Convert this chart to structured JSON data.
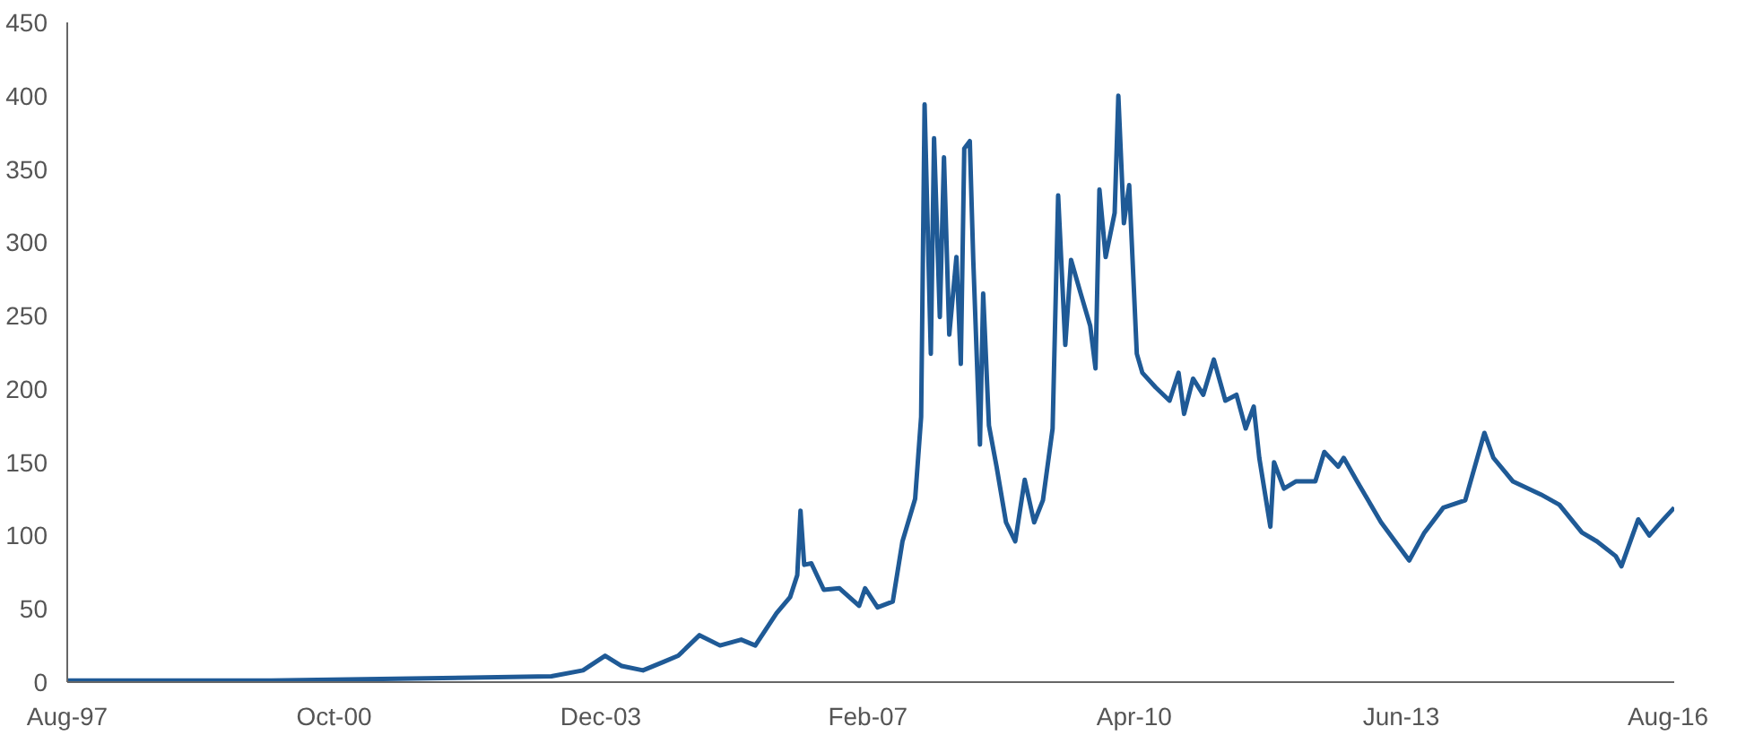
{
  "chart_data": {
    "type": "line",
    "x": [
      "1997-08-01",
      "2000-01-01",
      "2002-05-15",
      "2003-05-01",
      "2003-09-15",
      "2003-12-20",
      "2004-03-01",
      "2004-06-01",
      "2004-09-01",
      "2004-11-01",
      "2005-02-01",
      "2005-05-01",
      "2005-08-01",
      "2005-10-01",
      "2006-01-01",
      "2006-03-01",
      "2006-04-01",
      "2006-04-15",
      "2006-05-01",
      "2006-06-01",
      "2006-07-25",
      "2006-10-01",
      "2006-12-25",
      "2007-01-20",
      "2007-03-15",
      "2007-05-20",
      "2007-07-01",
      "2007-08-25",
      "2007-09-20",
      "2007-10-05",
      "2007-11-01",
      "2007-11-15",
      "2007-12-10",
      "2007-12-28",
      "2008-01-20",
      "2008-02-20",
      "2008-03-10",
      "2008-03-25",
      "2008-04-18",
      "2008-05-03",
      "2008-06-01",
      "2008-06-15",
      "2008-07-10",
      "2008-08-12",
      "2008-09-22",
      "2008-11-01",
      "2008-12-12",
      "2009-01-22",
      "2009-03-01",
      "2009-04-12",
      "2009-05-06",
      "2009-06-06",
      "2009-07-01",
      "2009-08-12",
      "2009-09-22",
      "2009-10-15",
      "2009-11-01",
      "2009-11-28",
      "2010-01-06",
      "2010-01-22",
      "2010-02-15",
      "2010-03-10",
      "2010-04-12",
      "2010-05-06",
      "2010-07-03",
      "2010-09-01",
      "2010-10-10",
      "2010-11-03",
      "2010-12-12",
      "2011-01-25",
      "2011-03-12",
      "2011-05-01",
      "2011-06-18",
      "2011-07-28",
      "2011-09-01",
      "2011-09-25",
      "2011-11-12",
      "2011-11-28",
      "2012-01-10",
      "2012-03-03",
      "2012-05-25",
      "2012-07-03",
      "2012-09-01",
      "2012-09-25",
      "2012-11-22",
      "2013-03-06",
      "2013-07-06",
      "2013-09-10",
      "2013-12-01",
      "2014-03-06",
      "2014-05-28",
      "2014-07-06",
      "2014-09-28",
      "2015-01-28",
      "2015-04-18",
      "2015-07-25",
      "2015-09-28",
      "2015-12-18",
      "2016-01-12",
      "2016-03-25",
      "2016-05-12",
      "2016-07-01",
      "2016-08-28"
    ],
    "series": [
      {
        "color": "#1f5a96",
        "values": [
          1,
          1,
          3,
          4,
          8,
          18,
          11,
          8,
          14,
          18,
          32,
          25,
          29,
          25,
          47,
          58,
          73,
          117,
          80,
          81,
          63,
          64,
          52,
          64,
          51,
          55,
          96,
          125,
          181,
          394,
          224,
          371,
          249,
          358,
          237,
          290,
          217,
          364,
          369,
          288,
          162,
          265,
          175,
          147,
          109,
          96,
          138,
          109,
          124,
          173,
          332,
          230,
          288,
          265,
          243,
          214,
          336,
          290,
          320,
          400,
          313,
          339,
          224,
          211,
          201,
          192,
          211,
          183,
          207,
          196,
          220,
          192,
          196,
          173,
          188,
          153,
          106,
          150,
          132,
          137,
          137,
          157,
          147,
          153,
          137,
          109,
          83,
          102,
          119,
          124,
          170,
          153,
          137,
          128,
          121,
          102,
          96,
          86,
          79,
          111,
          100,
          109,
          119
        ]
      }
    ],
    "xlim": [
      "1997-08-01",
      "2016-08-28"
    ],
    "xticks": [
      {
        "value": "1997-08-01",
        "label": "Aug-97"
      },
      {
        "value": "2000-10-01",
        "label": "Oct-00"
      },
      {
        "value": "2003-12-01",
        "label": "Dec-03"
      },
      {
        "value": "2007-02-01",
        "label": "Feb-07"
      },
      {
        "value": "2010-04-01",
        "label": "Apr-10"
      },
      {
        "value": "2013-06-01",
        "label": "Jun-13"
      },
      {
        "value": "2016-08-01",
        "label": "Aug-16"
      }
    ],
    "ylim": [
      0,
      450
    ],
    "yticks": [
      0,
      50,
      100,
      150,
      200,
      250,
      300,
      350,
      400,
      450
    ],
    "grid": false,
    "marker": "none",
    "line_style": "solid"
  }
}
